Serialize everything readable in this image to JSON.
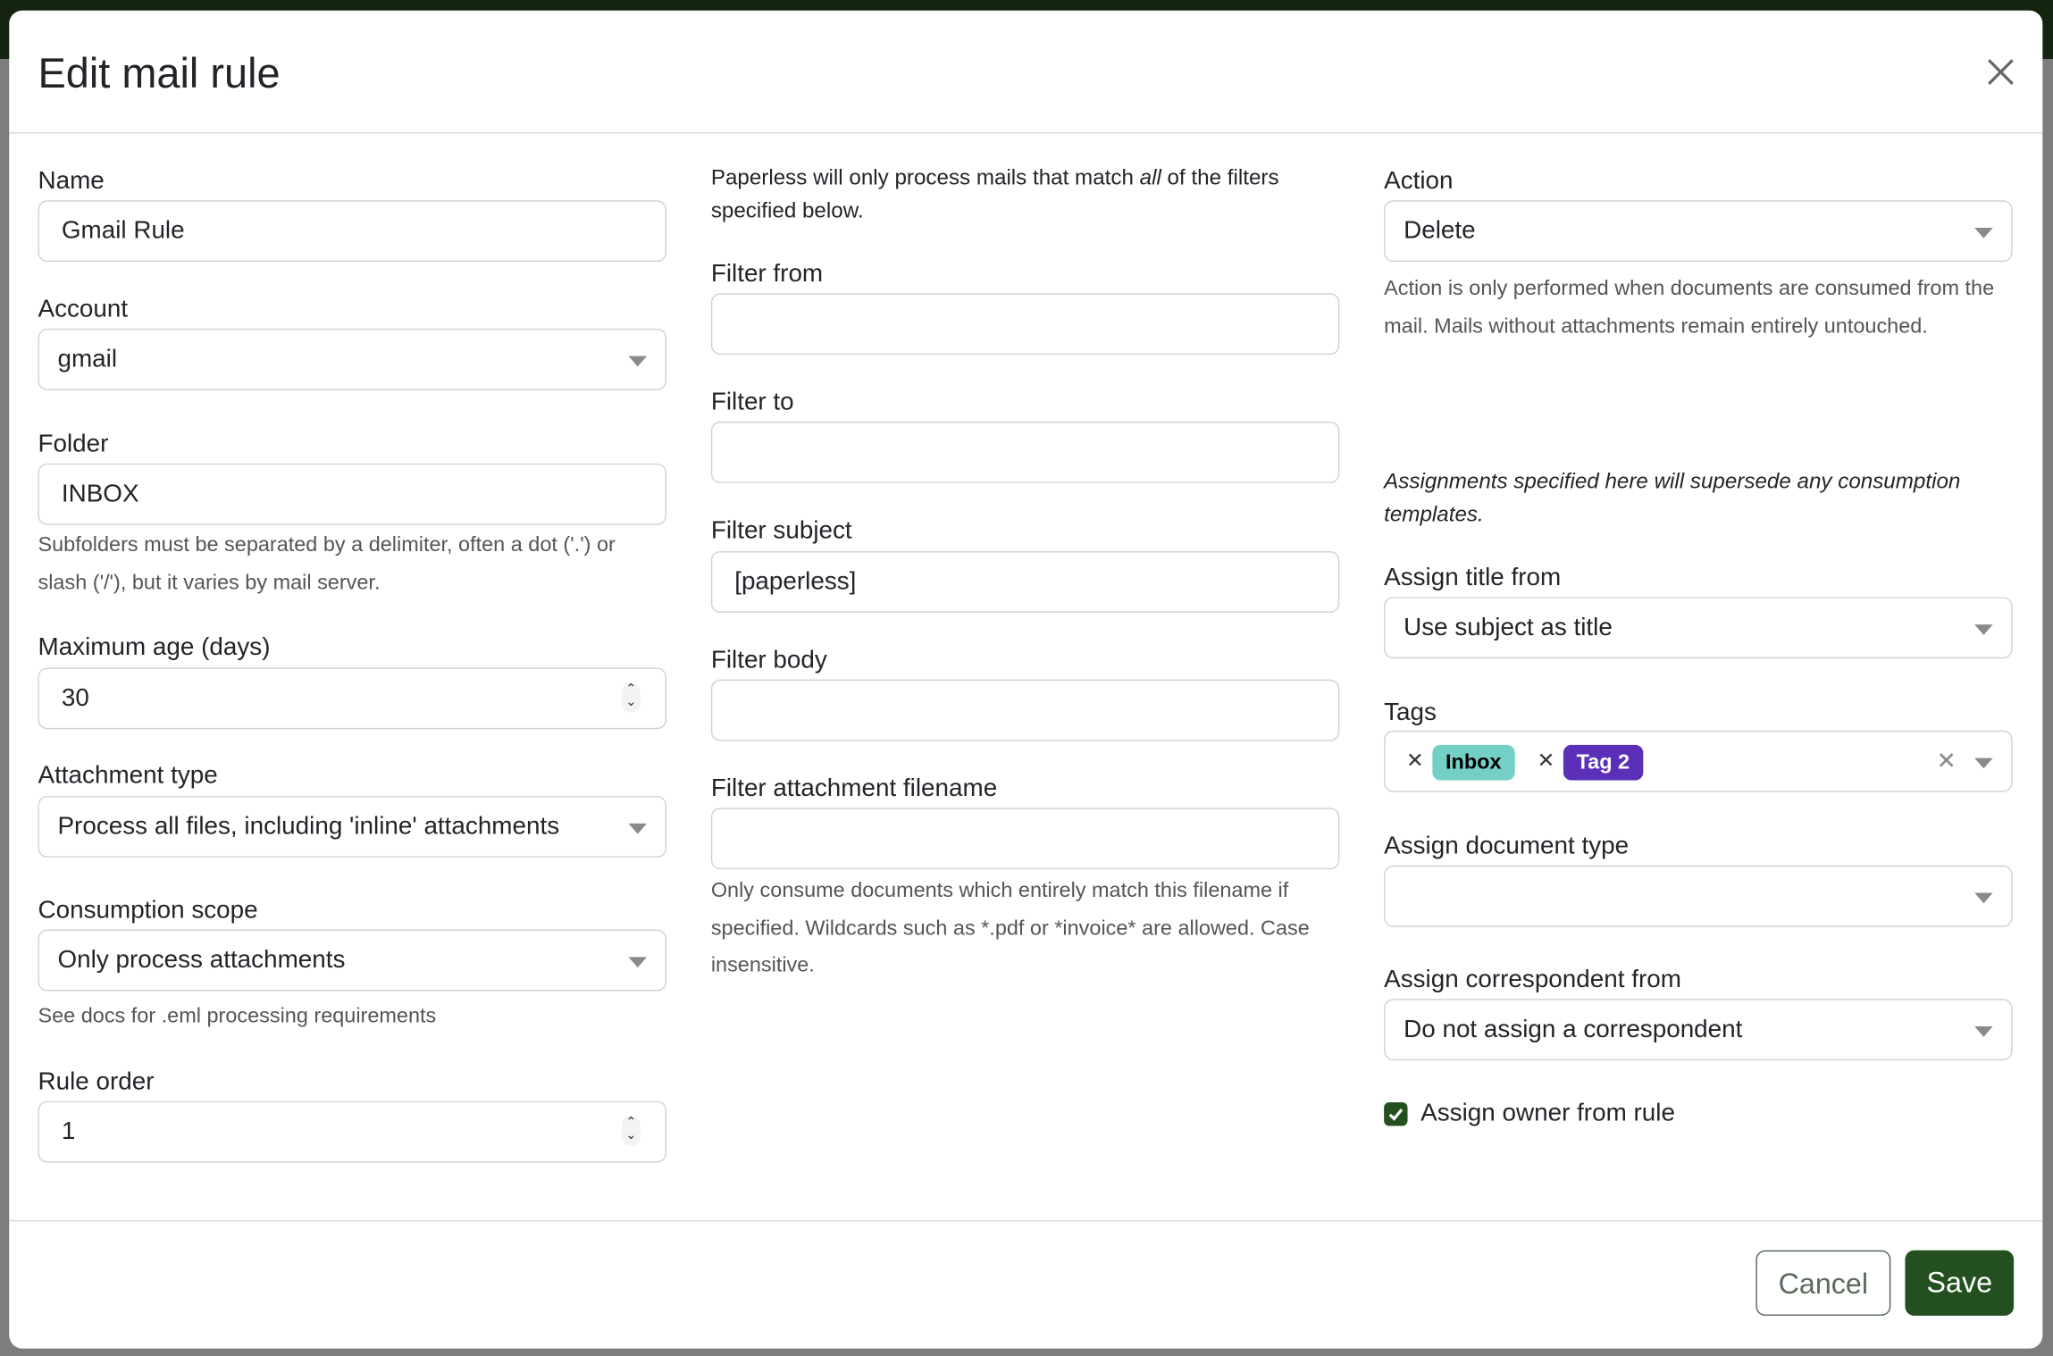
{
  "modal": {
    "title": "Edit mail rule",
    "close_icon": "close-icon"
  },
  "left": {
    "name": {
      "label": "Name",
      "value": "Gmail Rule"
    },
    "account": {
      "label": "Account",
      "value": "gmail"
    },
    "folder": {
      "label": "Folder",
      "value": "INBOX",
      "help": "Subfolders must be separated by a delimiter, often a dot ('.') or slash ('/'), but it varies by mail server."
    },
    "max_age": {
      "label": "Maximum age (days)",
      "value": "30"
    },
    "attachment_type": {
      "label": "Attachment type",
      "value": "Process all files, including 'inline' attachments"
    },
    "consumption_scope": {
      "label": "Consumption scope",
      "value": "Only process attachments",
      "help": "See docs for .eml processing requirements"
    },
    "rule_order": {
      "label": "Rule order",
      "value": "1"
    }
  },
  "middle": {
    "intro_pre": "Paperless will only process mails that match ",
    "intro_em": "all",
    "intro_post": " of the filters specified below.",
    "filter_from": {
      "label": "Filter from",
      "value": ""
    },
    "filter_to": {
      "label": "Filter to",
      "value": ""
    },
    "filter_subject": {
      "label": "Filter subject",
      "value": "[paperless]"
    },
    "filter_body": {
      "label": "Filter body",
      "value": ""
    },
    "filter_attachment": {
      "label": "Filter attachment filename",
      "value": "",
      "help": "Only consume documents which entirely match this filename if specified. Wildcards such as *.pdf or *invoice* are allowed. Case insensitive."
    }
  },
  "right": {
    "action": {
      "label": "Action",
      "value": "Delete",
      "help": "Action is only performed when documents are consumed from the mail. Mails without attachments remain entirely untouched."
    },
    "assign_note": "Assignments specified here will supersede any consumption templates.",
    "assign_title": {
      "label": "Assign title from",
      "value": "Use subject as title"
    },
    "tags": {
      "label": "Tags",
      "items": [
        {
          "name": "Inbox",
          "bg": "#74d0c6",
          "fg": "#000000"
        },
        {
          "name": "Tag 2",
          "bg": "#5b2fb8",
          "fg": "#ffffff"
        }
      ]
    },
    "doc_type": {
      "label": "Assign document type",
      "value": ""
    },
    "correspondent": {
      "label": "Assign correspondent from",
      "value": "Do not assign a correspondent"
    },
    "owner": {
      "label": "Assign owner from rule",
      "checked": true
    }
  },
  "footer": {
    "cancel": "Cancel",
    "save": "Save"
  },
  "colors": {
    "primary": "#24501f",
    "topbar": "#14240f"
  }
}
